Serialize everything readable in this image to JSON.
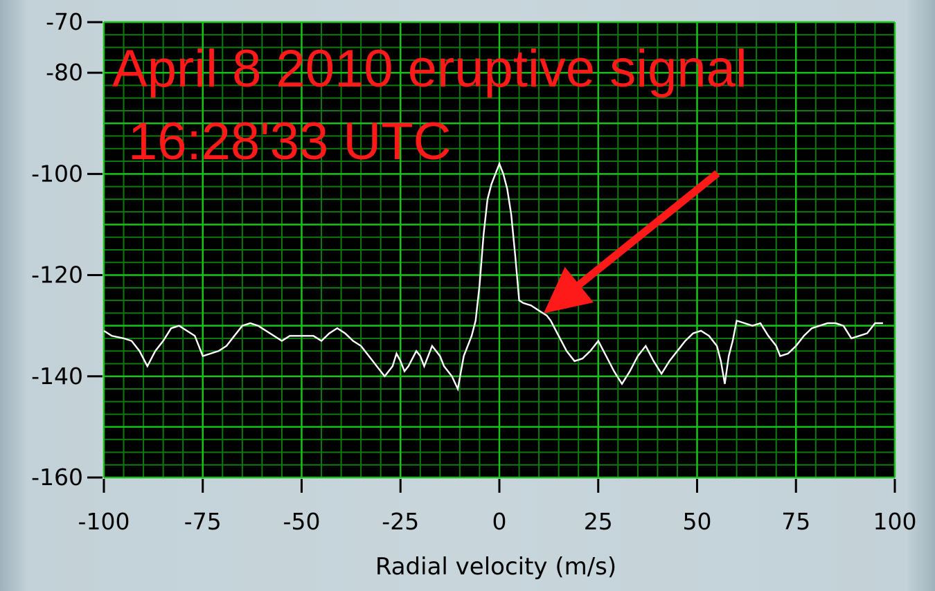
{
  "chart_data": {
    "type": "line",
    "title": "",
    "xlabel": "Radial velocity (m/s)",
    "ylabel": "",
    "xlim": [
      -100,
      100
    ],
    "ylim": [
      -160,
      -70
    ],
    "x_ticks": [
      -100,
      -75,
      -50,
      -25,
      0,
      25,
      50,
      75,
      100
    ],
    "x_tick_labels": [
      "-100",
      "-75",
      "-50",
      "-25",
      "0",
      "25",
      "50",
      "75",
      "100"
    ],
    "y_ticks": [
      -70,
      -80,
      -100,
      -120,
      -140,
      -160
    ],
    "y_tick_labels": [
      "-70",
      "-80",
      "-100",
      "-120",
      "-140",
      "-160"
    ],
    "grid": true,
    "colors": {
      "plot_background": "#000000",
      "grid_major": "#19c219",
      "grid_minor": "#0f7a0f",
      "series": "#ffffff",
      "annotation": "#ff1a1a"
    },
    "annotations": [
      {
        "text": "April 8 2010 eruptive signal",
        "color": "#ff1a1a"
      },
      {
        "text": "16:28'33 UTC",
        "color": "#ff1a1a"
      }
    ],
    "arrow": {
      "from": [
        52,
        -113
      ],
      "to": [
        14,
        -126
      ]
    },
    "series": [
      {
        "color": "#ffffff",
        "points": [
          [
            -100,
            -131
          ],
          [
            -98,
            -132
          ],
          [
            -95,
            -132.5
          ],
          [
            -93,
            -133
          ],
          [
            -91,
            -135
          ],
          [
            -89,
            -138
          ],
          [
            -87,
            -135
          ],
          [
            -85,
            -133
          ],
          [
            -83,
            -130.5
          ],
          [
            -81,
            -130
          ],
          [
            -79,
            -131
          ],
          [
            -77,
            -132
          ],
          [
            -75,
            -136
          ],
          [
            -73,
            -135.5
          ],
          [
            -71,
            -135
          ],
          [
            -69,
            -134
          ],
          [
            -67,
            -132
          ],
          [
            -65,
            -130
          ],
          [
            -63,
            -129.5
          ],
          [
            -61,
            -130
          ],
          [
            -59,
            -131
          ],
          [
            -57,
            -132
          ],
          [
            -55,
            -133
          ],
          [
            -53,
            -132
          ],
          [
            -51,
            -132
          ],
          [
            -49,
            -132
          ],
          [
            -47,
            -132
          ],
          [
            -45,
            -133
          ],
          [
            -43,
            -131.5
          ],
          [
            -41,
            -130.5
          ],
          [
            -39,
            -131.5
          ],
          [
            -37,
            -133
          ],
          [
            -35,
            -134
          ],
          [
            -33,
            -136
          ],
          [
            -31,
            -138
          ],
          [
            -29,
            -140
          ],
          [
            -27,
            -138
          ],
          [
            -26,
            -135.5
          ],
          [
            -25,
            -137
          ],
          [
            -24,
            -139
          ],
          [
            -23,
            -138
          ],
          [
            -21,
            -135
          ],
          [
            -20,
            -136
          ],
          [
            -19,
            -138
          ],
          [
            -17,
            -134
          ],
          [
            -15,
            -136
          ],
          [
            -14,
            -138
          ],
          [
            -12,
            -140
          ],
          [
            -10.5,
            -142.5
          ],
          [
            -9,
            -136
          ],
          [
            -7,
            -132
          ],
          [
            -6,
            -129
          ],
          [
            -5,
            -122
          ],
          [
            -4,
            -112
          ],
          [
            -3,
            -105
          ],
          [
            -2,
            -102
          ],
          [
            -1,
            -100
          ],
          [
            0,
            -98
          ],
          [
            1,
            -100
          ],
          [
            2,
            -103
          ],
          [
            3,
            -108
          ],
          [
            4,
            -116
          ],
          [
            5,
            -125
          ],
          [
            6,
            -125.5
          ],
          [
            8,
            -126
          ],
          [
            10,
            -127
          ],
          [
            12,
            -128
          ],
          [
            13,
            -129
          ],
          [
            15,
            -132
          ],
          [
            17,
            -135
          ],
          [
            19,
            -137
          ],
          [
            21,
            -136.5
          ],
          [
            23,
            -135
          ],
          [
            25,
            -133
          ],
          [
            27,
            -136
          ],
          [
            29,
            -139
          ],
          [
            31,
            -141.5
          ],
          [
            33,
            -139
          ],
          [
            35,
            -136
          ],
          [
            37,
            -134
          ],
          [
            39,
            -137
          ],
          [
            41,
            -139.5
          ],
          [
            43,
            -137
          ],
          [
            45,
            -135
          ],
          [
            47,
            -133
          ],
          [
            49,
            -131.5
          ],
          [
            51,
            -131
          ],
          [
            53,
            -132
          ],
          [
            55,
            -134
          ],
          [
            56,
            -137
          ],
          [
            57,
            -141.5
          ],
          [
            58,
            -136
          ],
          [
            59,
            -133
          ],
          [
            60,
            -129
          ],
          [
            62,
            -129.5
          ],
          [
            64,
            -130
          ],
          [
            66,
            -129.5
          ],
          [
            68,
            -132
          ],
          [
            70,
            -134
          ],
          [
            71,
            -136
          ],
          [
            73,
            -135.5
          ],
          [
            75,
            -134
          ],
          [
            77,
            -132
          ],
          [
            79,
            -130.5
          ],
          [
            81,
            -130
          ],
          [
            83,
            -129.5
          ],
          [
            85,
            -129.5
          ],
          [
            87,
            -130
          ],
          [
            89,
            -132.5
          ],
          [
            91,
            -132
          ],
          [
            93,
            -131.5
          ],
          [
            95,
            -129.5
          ],
          [
            97,
            -129.5
          ]
        ]
      }
    ]
  }
}
